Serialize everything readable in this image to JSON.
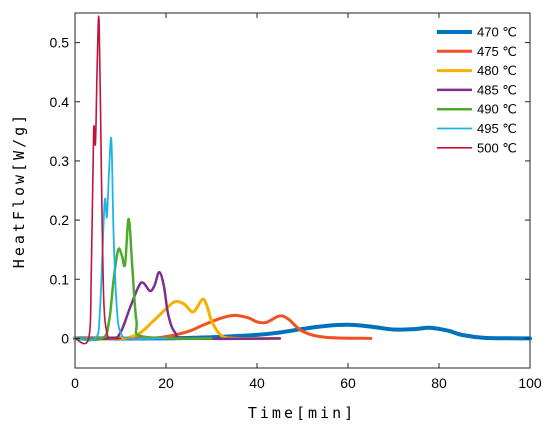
{
  "chart_data": {
    "type": "line",
    "title": "",
    "xlabel": "Time[min]",
    "ylabel": "HeatFlow[W/g]",
    "xlim": [
      0,
      100
    ],
    "ylim": [
      -0.05,
      0.55
    ],
    "xticks": [
      "0",
      "20",
      "40",
      "60",
      "80",
      "100"
    ],
    "yticks": [
      "0",
      "0.1",
      "0.2",
      "0.3",
      "0.4",
      "0.5"
    ],
    "grid": false,
    "legend_position": "top-right",
    "series": [
      {
        "name": "470 ℃",
        "color": "#0072BD",
        "x": [
          0,
          20,
          30,
          40,
          45,
          50,
          55,
          60,
          65,
          70,
          75,
          78,
          82,
          85,
          90,
          100
        ],
        "y": [
          0,
          0,
          0.002,
          0.006,
          0.01,
          0.016,
          0.021,
          0.023,
          0.02,
          0.015,
          0.016,
          0.018,
          0.013,
          0.006,
          0.001,
          0
        ]
      },
      {
        "name": "475 ℃",
        "color": "#F25022",
        "x": [
          0,
          15,
          20,
          25,
          28,
          32,
          35,
          38,
          40,
          42,
          45,
          47,
          50,
          55,
          65
        ],
        "y": [
          0,
          0,
          0.003,
          0.012,
          0.022,
          0.034,
          0.039,
          0.035,
          0.028,
          0.027,
          0.038,
          0.032,
          0.012,
          0.002,
          0
        ]
      },
      {
        "name": "480 ℃",
        "color": "#F5B100",
        "x": [
          0,
          10,
          14,
          17,
          20,
          22,
          24,
          26,
          28,
          29,
          30,
          32,
          35,
          45
        ],
        "y": [
          0,
          0,
          0.008,
          0.028,
          0.05,
          0.062,
          0.058,
          0.045,
          0.066,
          0.055,
          0.03,
          0.006,
          0,
          0
        ]
      },
      {
        "name": "485 ℃",
        "color": "#7E2F8E",
        "x": [
          0,
          8,
          10,
          12,
          14,
          15,
          16.5,
          17.5,
          18.5,
          19.5,
          20.5,
          22,
          25,
          45
        ],
        "y": [
          0,
          0,
          0.01,
          0.05,
          0.088,
          0.094,
          0.08,
          0.09,
          0.112,
          0.09,
          0.04,
          0.01,
          0,
          0
        ]
      },
      {
        "name": "490 ℃",
        "color": "#4DAA2A",
        "x": [
          0,
          6,
          7.5,
          8.5,
          9.5,
          10.3,
          11,
          11.8,
          12.6,
          13.5,
          15,
          30
        ],
        "y": [
          0,
          0,
          0.03,
          0.1,
          0.15,
          0.14,
          0.125,
          0.202,
          0.12,
          0.03,
          0.003,
          0
        ]
      },
      {
        "name": "495 ℃",
        "color": "#1CB5E8",
        "x": [
          0,
          4.5,
          5.5,
          6.5,
          7,
          7.5,
          8,
          8.5,
          9.2,
          10,
          12,
          20
        ],
        "y": [
          0,
          0,
          0.05,
          0.23,
          0.205,
          0.285,
          0.335,
          0.17,
          0.05,
          0.01,
          0,
          0
        ]
      },
      {
        "name": "500 ℃",
        "color": "#C0143C",
        "x": [
          0,
          3,
          3.6,
          4.1,
          4.5,
          4.9,
          5.3,
          5.8,
          6.3,
          7,
          8,
          10
        ],
        "y": [
          0,
          0,
          0.12,
          0.35,
          0.33,
          0.47,
          0.536,
          0.28,
          0.07,
          0.01,
          0,
          0
        ]
      }
    ]
  }
}
